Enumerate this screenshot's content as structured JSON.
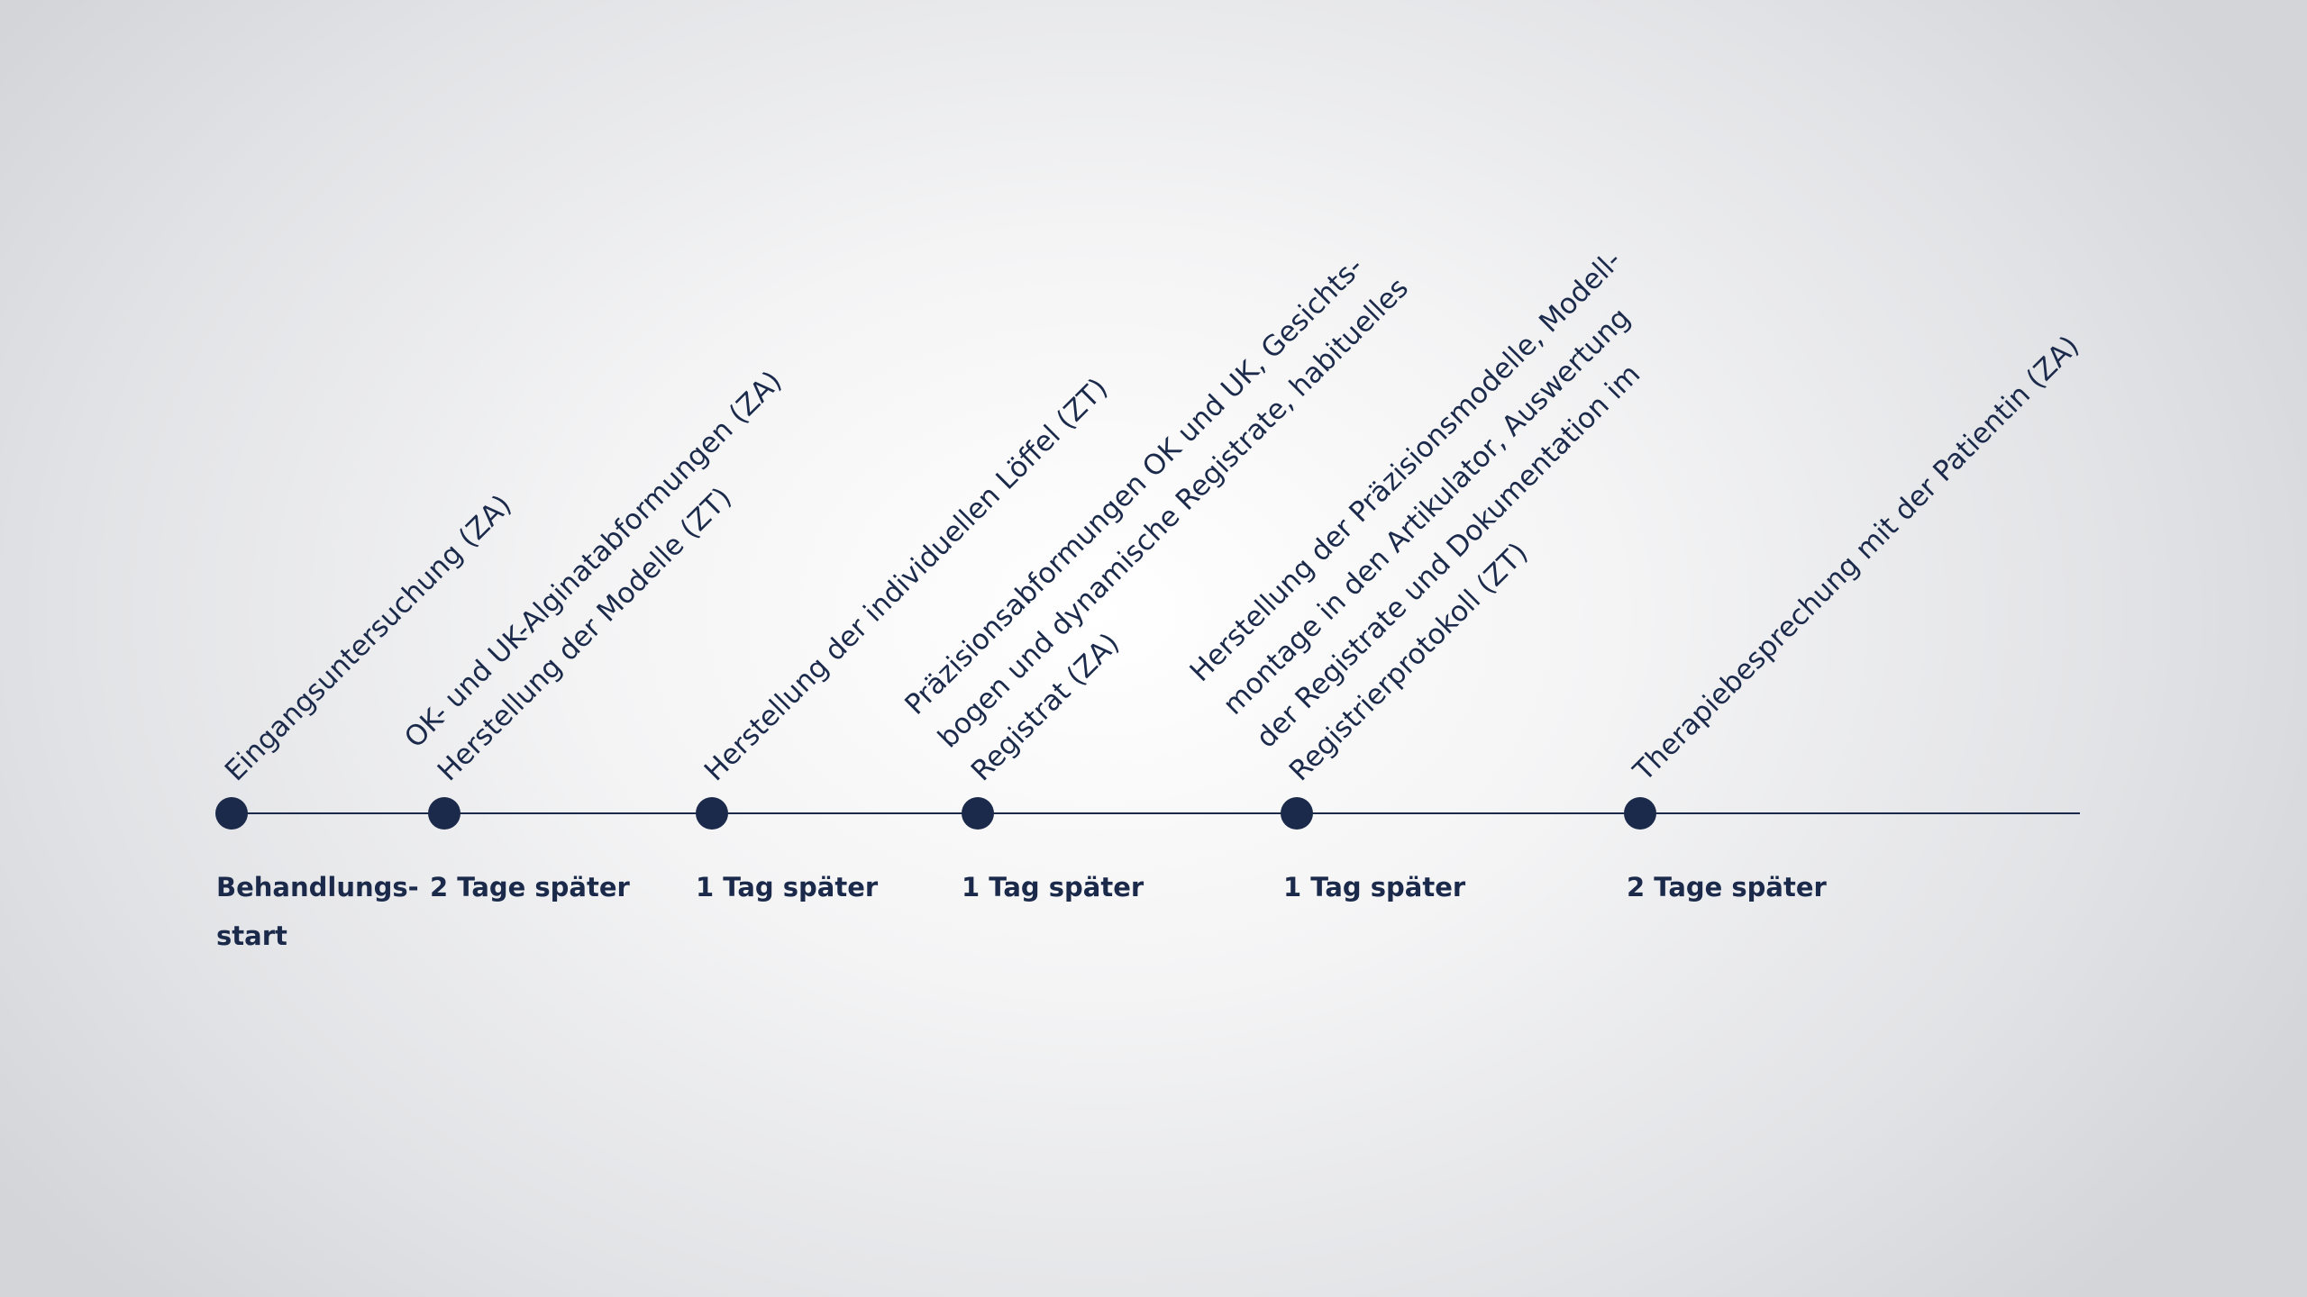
{
  "colors": {
    "accent": "#1b2a4a",
    "background": "#f4f4f5"
  },
  "milestones": [
    {
      "label_lines": [
        "Eingangsuntersuchung (ZA)"
      ],
      "time_lines": [
        "Behandlungs-",
        "start"
      ]
    },
    {
      "label_lines": [
        "OK- und UK-Alginatabformungen (ZA)",
        "Herstellung der Modelle (ZT)"
      ],
      "time_lines": [
        "2 Tage später"
      ]
    },
    {
      "label_lines": [
        "Herstellung der individuellen Löffel (ZT)"
      ],
      "time_lines": [
        "1 Tag später"
      ]
    },
    {
      "label_lines": [
        "Präzisionsabformungen OK und UK, Gesichts-",
        "bogen und dynamische Registrate, habituelles",
        "Registrat (ZA)"
      ],
      "time_lines": [
        "1 Tag später"
      ]
    },
    {
      "label_lines": [
        "Herstellung der Präzisionsmodelle, Modell-",
        "montage in den Artikulator, Auswertung",
        "der Registrate und Dokumentation im",
        "Registrierprotokoll (ZT)"
      ],
      "time_lines": [
        "1 Tag später"
      ]
    },
    {
      "label_lines": [
        "Therapiebesprechung mit der Patientin (ZA)"
      ],
      "time_lines": [
        "2 Tage später"
      ]
    }
  ]
}
